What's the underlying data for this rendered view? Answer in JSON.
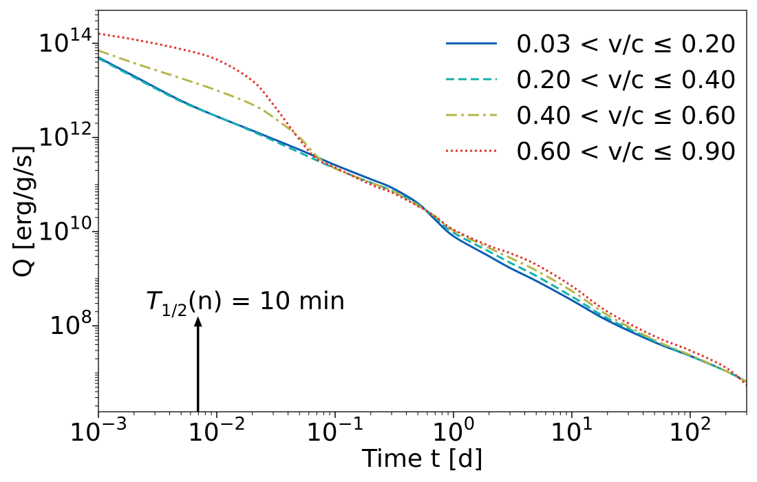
{
  "chart_data": {
    "type": "line",
    "title": "",
    "xlabel": "Time t [d]",
    "ylabel": "Q [erg/g/s]",
    "xscale": "log",
    "yscale": "log",
    "xlim": [
      0.001,
      300
    ],
    "ylim": [
      1500000.0,
      500000000000000.0
    ],
    "grid": false,
    "legend_position": "top-right",
    "x_ticks": [
      {
        "value": 0.001,
        "base": "10",
        "exp": "−3"
      },
      {
        "value": 0.01,
        "base": "10",
        "exp": "−2"
      },
      {
        "value": 0.1,
        "base": "10",
        "exp": "−1"
      },
      {
        "value": 1,
        "base": "10",
        "exp": "0"
      },
      {
        "value": 10,
        "base": "10",
        "exp": "1"
      },
      {
        "value": 100,
        "base": "10",
        "exp": "2"
      }
    ],
    "y_ticks": [
      {
        "value": 100000000.0,
        "base": "10",
        "exp": "8"
      },
      {
        "value": 10000000000.0,
        "base": "10",
        "exp": "10"
      },
      {
        "value": 1000000000000.0,
        "base": "10",
        "exp": "12"
      },
      {
        "value": 100000000000000.0,
        "base": "10",
        "exp": "14"
      }
    ],
    "series": [
      {
        "name": "0.03 < v/c ≤ 0.20",
        "color": "#0a5cb3",
        "style": "solid",
        "x": [
          0.001,
          0.002,
          0.005,
          0.01,
          0.02,
          0.05,
          0.1,
          0.2,
          0.3,
          0.5,
          0.7,
          1,
          2,
          3,
          5,
          10,
          20,
          50,
          100,
          200,
          300
        ],
        "y": [
          50000000000000.0,
          20000000000000.0,
          6000000000000.0,
          2800000000000.0,
          1400000000000.0,
          550000000000.0,
          260000000000.0,
          130000000000.0,
          86000000000.0,
          40000000000.0,
          18000000000.0,
          8000000000.0,
          3000000000.0,
          1700000000.0,
          900000000.0,
          350000000.0,
          130000000.0,
          45000000.0,
          23000000.0,
          11000000.0,
          6500000.0
        ]
      },
      {
        "name": "0.20 < v/c ≤ 0.40",
        "color": "#14b0b0",
        "style": "dashed",
        "x": [
          0.001,
          0.002,
          0.005,
          0.01,
          0.02,
          0.05,
          0.1,
          0.2,
          0.3,
          0.5,
          0.7,
          1,
          2,
          3,
          5,
          10,
          20,
          50,
          100,
          200,
          300
        ],
        "y": [
          48000000000000.0,
          19000000000000.0,
          5800000000000.0,
          2800000000000.0,
          1350000000000.0,
          480000000000.0,
          220000000000.0,
          110000000000.0,
          75000000000.0,
          38000000000.0,
          20000000000.0,
          9500000000.0,
          3800000000.0,
          2200000000.0,
          1150000000.0,
          420000000.0,
          145000000.0,
          48000000.0,
          23000000.0,
          11000000.0,
          6500000.0
        ]
      },
      {
        "name": "0.40 < v/c ≤ 0.60",
        "color": "#b5b54a",
        "style": "dashdot",
        "x": [
          0.001,
          0.002,
          0.005,
          0.01,
          0.02,
          0.03,
          0.05,
          0.07,
          0.1,
          0.2,
          0.3,
          0.5,
          0.7,
          1,
          2,
          3,
          5,
          10,
          20,
          50,
          100,
          200,
          300
        ],
        "y": [
          70000000000000.0,
          38000000000000.0,
          18000000000000.0,
          10000000000000.0,
          5000000000000.0,
          2700000000000.0,
          1000000000000.0,
          400000000000.0,
          220000000000.0,
          110000000000.0,
          75000000000.0,
          36000000000.0,
          21000000000.0,
          10500000000.0,
          4500000000.0,
          2800000000.0,
          1500000000.0,
          550000000.0,
          170000000.0,
          50000000.0,
          24000000.0,
          11000000.0,
          6500000.0
        ]
      },
      {
        "name": "0.60 < v/c ≤ 0.90",
        "color": "#e0302a",
        "style": "dotted",
        "x": [
          0.001,
          0.002,
          0.005,
          0.01,
          0.02,
          0.03,
          0.05,
          0.07,
          0.1,
          0.2,
          0.3,
          0.5,
          0.7,
          1,
          2,
          3,
          5,
          10,
          20,
          50,
          100,
          200,
          300
        ],
        "y": [
          160000000000000.0,
          120000000000000.0,
          75000000000000.0,
          45000000000000.0,
          16000000000000.0,
          5000000000000.0,
          900000000000.0,
          350000000000.0,
          230000000000.0,
          100000000000.0,
          68000000000.0,
          35000000000.0,
          21000000000.0,
          11000000000.0,
          5000000000.0,
          3500000000.0,
          2000000000.0,
          700000000.0,
          200000000.0,
          60000000.0,
          30000000.0,
          13000000.0,
          5500000.0
        ]
      }
    ],
    "annotations": [
      {
        "text_main": "T",
        "text_sub": "1/2",
        "text_rest": "(n) = 10 min",
        "arrow_x": 0.00694,
        "arrow_to_y": 160000000.0
      }
    ]
  }
}
